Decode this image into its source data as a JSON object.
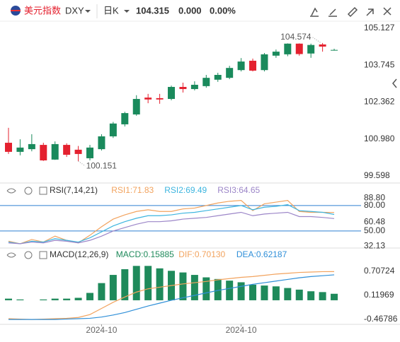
{
  "header": {
    "title": "美元指数",
    "symbol": "DXY",
    "period": "日K",
    "price": 104.315,
    "change": "0.000",
    "change_pct": "0.00%"
  },
  "chart_data": [
    {
      "type": "candlestick",
      "up_color": "#1a8a5c",
      "down_color": "#e4212f",
      "open": [
        100.84,
        100.5,
        100.6,
        100.76,
        100.21,
        100.76,
        100.58,
        100.26,
        100.6,
        101.08,
        101.53,
        101.9,
        102.53,
        102.51,
        102.48,
        102.93,
        102.85,
        102.96,
        103.2,
        103.27,
        103.56,
        103.91,
        103.56,
        104.1,
        104.15,
        104.55,
        104.18,
        104.52,
        104.315
      ],
      "high": [
        101.4,
        100.97,
        101.16,
        100.84,
        100.89,
        100.82,
        100.72,
        100.76,
        101.16,
        101.62,
        102.0,
        102.62,
        102.67,
        102.67,
        102.98,
        103.09,
        103.14,
        103.38,
        103.46,
        103.72,
        104.01,
        103.99,
        104.2,
        104.33,
        104.56,
        104.56,
        104.55,
        104.574,
        104.36
      ],
      "low": [
        100.42,
        100.37,
        100.52,
        100.16,
        100.2,
        100.31,
        100.151,
        100.18,
        100.55,
        101.02,
        101.45,
        101.85,
        102.32,
        102.3,
        102.43,
        102.72,
        102.8,
        102.9,
        103.12,
        103.22,
        103.51,
        103.51,
        103.51,
        104.02,
        104.08,
        104.1,
        104.02,
        104.25,
        104.29
      ],
      "close": [
        100.5,
        100.66,
        100.79,
        100.18,
        100.79,
        100.39,
        100.42,
        100.66,
        101.08,
        101.56,
        101.95,
        102.48,
        102.46,
        102.46,
        102.93,
        102.85,
        103.01,
        103.27,
        103.38,
        103.64,
        103.88,
        103.54,
        104.15,
        104.25,
        104.55,
        104.16,
        104.5,
        104.44,
        104.315
      ],
      "ylim": [
        99.36,
        105.39
      ],
      "yticks": [
        99.598,
        {
          "value": 100.98,
          "label": "100.980"
        },
        102.362,
        103.745,
        105.127
      ],
      "annotations": [
        {
          "label": "100.151",
          "value": 100.151
        },
        {
          "label": "104.574",
          "value": 104.574
        }
      ]
    },
    {
      "type": "line",
      "indicator": "RSI(7,14,21)",
      "ylim": [
        30.8,
        104
      ],
      "yticks": [
        32.13,
        {
          "value": 50,
          "label": "50.00"
        },
        60.48,
        {
          "value": 80,
          "label": "80.00"
        },
        {
          "value": 88.8,
          "label": "88.80"
        }
      ],
      "reference_lines": [
        80,
        50
      ],
      "reference_color": "#2f7fd0",
      "series": [
        {
          "legend": "RSI1:71.83",
          "color": "#f2a35e",
          "values": [
            38,
            35,
            40,
            37,
            44,
            39,
            36,
            45,
            55,
            64,
            69,
            73,
            75,
            73,
            73,
            76,
            77,
            80,
            83,
            85,
            86,
            74,
            82,
            84,
            86,
            73,
            72,
            72,
            71.83
          ]
        },
        {
          "legend": "RSI2:69.49",
          "color": "#3db5df",
          "values": [
            37,
            35,
            38,
            37,
            41,
            39,
            37,
            42,
            49,
            56,
            61,
            65,
            68,
            68,
            69,
            71,
            72,
            74,
            76,
            78,
            80,
            75,
            78,
            79,
            81,
            74,
            73,
            72,
            69.49
          ]
        },
        {
          "legend": "RSI3:64.65",
          "color": "#9c86c8",
          "values": [
            36,
            35,
            37,
            36,
            39,
            38,
            36,
            39,
            44,
            50,
            54,
            58,
            61,
            61,
            62,
            64,
            65,
            66,
            68,
            70,
            72,
            68,
            70,
            71,
            72,
            67,
            67,
            66,
            64.65
          ]
        }
      ]
    },
    {
      "type": "bar",
      "indicator": "MACD(12,26,9)",
      "ylim": [
        -0.571,
        1.26
      ],
      "yticks": [
        -0.46786,
        0.11969,
        0.70724
      ],
      "categories": [
        null,
        null,
        null,
        null,
        null,
        null,
        null,
        null,
        "2024-10",
        null,
        null,
        null,
        null,
        null,
        null,
        null,
        null,
        null,
        null,
        null,
        "2024-10",
        null,
        null,
        null,
        null,
        null,
        null,
        null,
        null
      ],
      "series": [
        {
          "legend": "MACD:0.15885",
          "kind": "bar",
          "color": "#1f8a5b",
          "values": [
            0.04,
            0.02,
            0,
            0.02,
            0.04,
            0.04,
            0.06,
            0.18,
            0.42,
            0.62,
            0.76,
            0.84,
            0.84,
            0.78,
            0.72,
            0.68,
            0.62,
            0.56,
            0.52,
            0.48,
            0.44,
            0.38,
            0.36,
            0.34,
            0.3,
            0.26,
            0.22,
            0.2,
            0.15885
          ]
        },
        {
          "legend": "DIF:0.70130",
          "kind": "line",
          "color": "#f2a35e",
          "values": [
            -0.45,
            -0.46,
            -0.47,
            -0.46,
            -0.45,
            -0.44,
            -0.42,
            -0.35,
            -0.2,
            -0.05,
            0.08,
            0.2,
            0.28,
            0.32,
            0.36,
            0.4,
            0.43,
            0.46,
            0.5,
            0.53,
            0.56,
            0.58,
            0.61,
            0.64,
            0.66,
            0.68,
            0.69,
            0.7,
            0.7013
          ]
        },
        {
          "legend": "DEA:0.62187",
          "kind": "line",
          "color": "#2f8fd8",
          "values": [
            -0.47,
            -0.47,
            -0.47,
            -0.47,
            -0.47,
            -0.46,
            -0.45,
            -0.44,
            -0.41,
            -0.36,
            -0.3,
            -0.22,
            -0.14,
            -0.07,
            0.0,
            0.06,
            0.12,
            0.18,
            0.24,
            0.29,
            0.34,
            0.39,
            0.43,
            0.47,
            0.51,
            0.55,
            0.58,
            0.6,
            0.62187
          ]
        }
      ]
    }
  ]
}
